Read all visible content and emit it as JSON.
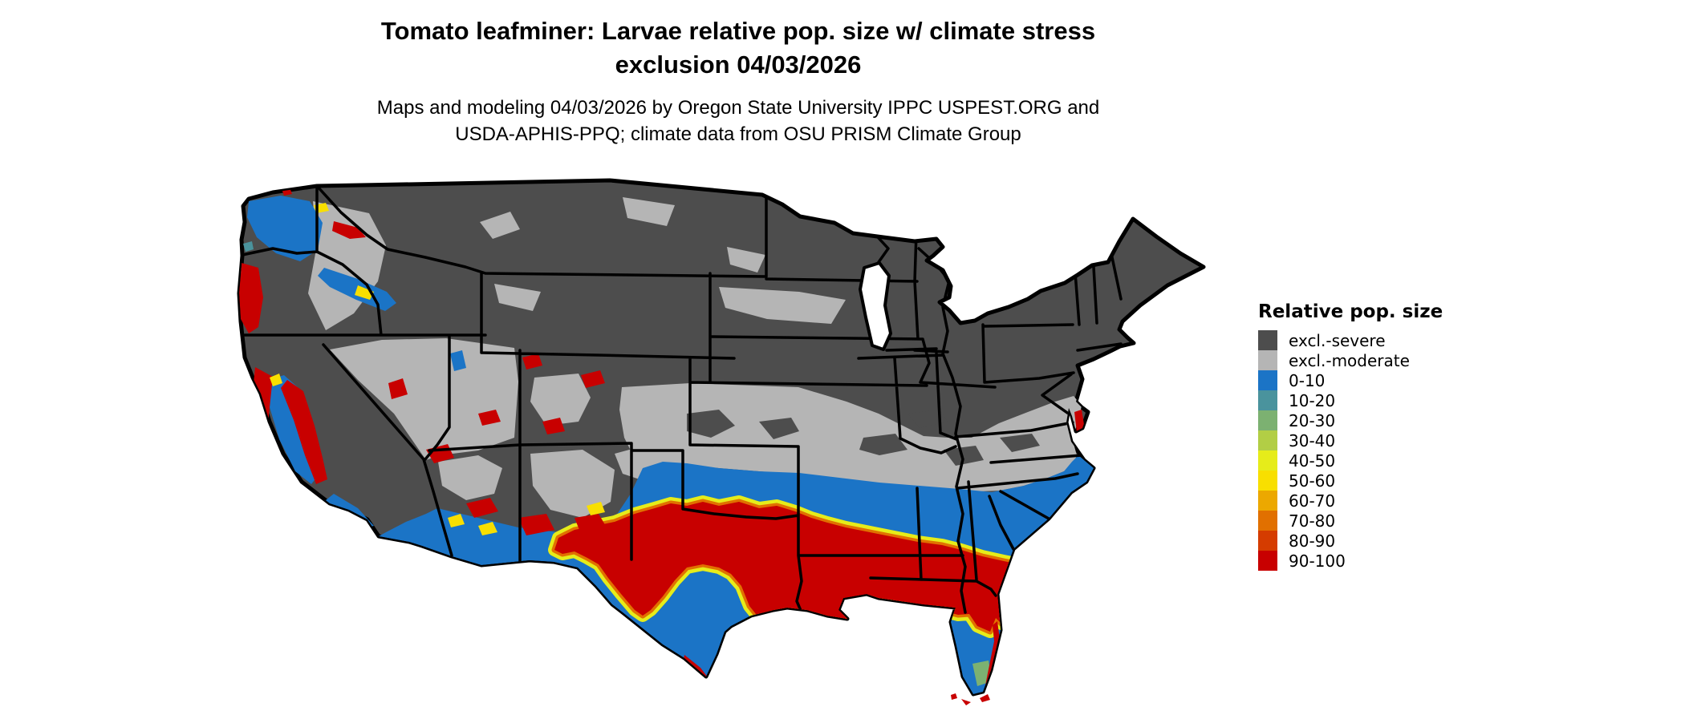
{
  "title": {
    "line1": "Tomato leafminer: Larvae relative pop. size w/ climate stress",
    "line2": "exclusion 04/03/2026"
  },
  "subtitle": {
    "line1": "Maps and modeling 04/03/2026 by Oregon State University IPPC USPEST.ORG and",
    "line2": "USDA-APHIS-PPQ; climate data from OSU PRISM Climate Group"
  },
  "legend": {
    "title": "Relative pop. size",
    "items": [
      {
        "id": "excl-severe",
        "label": "excl.-severe",
        "color": "#4D4D4D"
      },
      {
        "id": "excl-moderate",
        "label": "excl.-moderate",
        "color": "#B5B5B5"
      },
      {
        "id": "0-10",
        "label": "0-10",
        "color": "#1B74C6"
      },
      {
        "id": "10-20",
        "label": "10-20",
        "color": "#4A939D"
      },
      {
        "id": "20-30",
        "label": "20-30",
        "color": "#7CB171"
      },
      {
        "id": "30-40",
        "label": "30-40",
        "color": "#B2CE45"
      },
      {
        "id": "40-50",
        "label": "40-50",
        "color": "#E6EC1A"
      },
      {
        "id": "50-60",
        "label": "50-60",
        "color": "#F8DF00"
      },
      {
        "id": "60-70",
        "label": "60-70",
        "color": "#ECA800"
      },
      {
        "id": "70-80",
        "label": "70-80",
        "color": "#E17000"
      },
      {
        "id": "80-90",
        "label": "80-90",
        "color": "#D53C00"
      },
      {
        "id": "90-100",
        "label": "90-100",
        "color": "#C80000"
      }
    ]
  },
  "map": {
    "region": "Contiguous United States",
    "background": "#FFFFFF",
    "border_color": "#000000",
    "water_color": "#FFFFFF"
  }
}
